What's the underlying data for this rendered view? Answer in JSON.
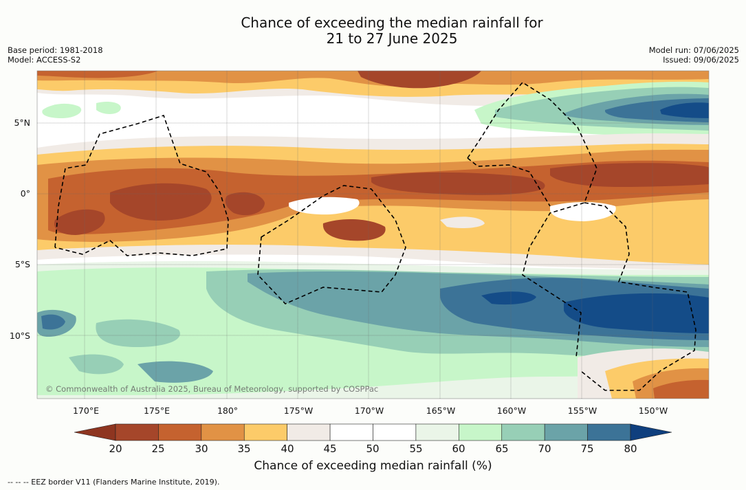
{
  "title": {
    "line1": "Chance of exceeding the median rainfall for",
    "line2": "21 to 27 June 2025"
  },
  "meta_left": {
    "base_period": "Base period: 1981-2018",
    "model": "Model: ACCESS-S2"
  },
  "meta_right": {
    "model_run": "Model run: 07/06/2025",
    "issued": "Issued: 09/06/2025"
  },
  "latitude_labels": [
    "5°N",
    "0°",
    "5°S",
    "10°S"
  ],
  "longitude_labels": [
    "170°E",
    "175°E",
    "180°",
    "175°W",
    "170°W",
    "165°W",
    "160°W",
    "155°W",
    "150°W"
  ],
  "credit": "© Commonwealth of Australia 2025, Bureau of Meteorology, supported by COSPPac",
  "colorbar": {
    "ticks": [
      "20",
      "25",
      "30",
      "35",
      "40",
      "45",
      "50",
      "55",
      "60",
      "65",
      "70",
      "75",
      "80"
    ],
    "colors": [
      "#a5462a",
      "#c5622f",
      "#e19245",
      "#fccb69",
      "#f1ebe6",
      "#ffffff",
      "#ffffff",
      "#eaf5e8",
      "#c7f6c9",
      "#97cfb6",
      "#6ba3a8",
      "#3c7397",
      "#144c88"
    ],
    "low_color": "#8e3520",
    "high_color": "#0f3f7e",
    "title": "Chance of exceeding median rainfall (%)"
  },
  "footnote": "--  --  -- EEZ border V11 (Flanders Marine Institute, 2019)."
}
